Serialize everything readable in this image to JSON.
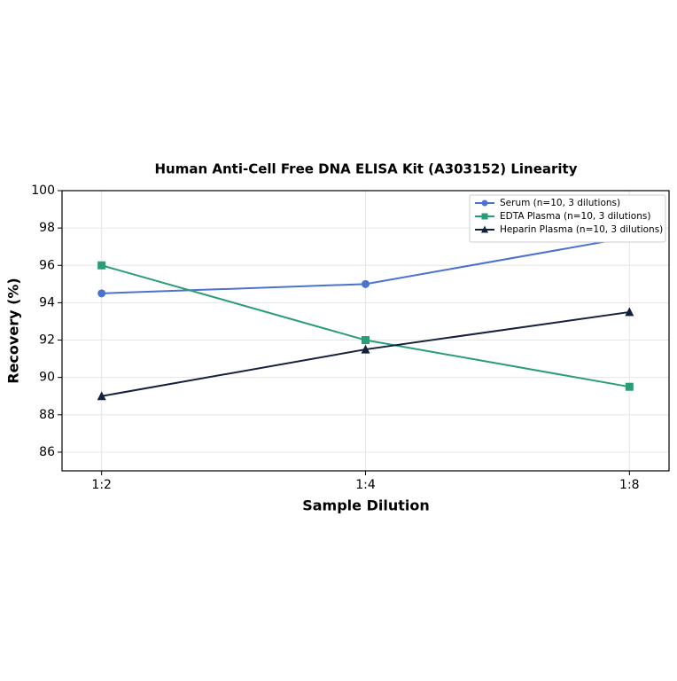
{
  "chart_data": {
    "type": "line",
    "title": "Human Anti-Cell Free DNA ELISA Kit (A303152) Linearity",
    "x_label": "Sample Dilution",
    "y_label": "Recovery (%)",
    "categories": [
      "1:2",
      "1:4",
      "1:8"
    ],
    "series": [
      {
        "name": "Serum (n=10, 3 dilutions)",
        "color": "#4c72d0",
        "marker": "circle",
        "values": [
          94.5,
          95,
          97.5
        ]
      },
      {
        "name": "EDTA Plasma (n=10, 3 dilutions)",
        "color": "#2a9d78",
        "marker": "square",
        "values": [
          96,
          92,
          89.5
        ]
      },
      {
        "name": "Heparin Plasma (n=10, 3 dilutions)",
        "color": "#14213d",
        "marker": "triangle",
        "values": [
          89,
          91.5,
          93.5
        ]
      }
    ],
    "ylim": [
      85,
      100
    ],
    "yticks": [
      86,
      88,
      90,
      92,
      94,
      96,
      98,
      100
    ],
    "grid": true,
    "legend": "upper-right"
  }
}
